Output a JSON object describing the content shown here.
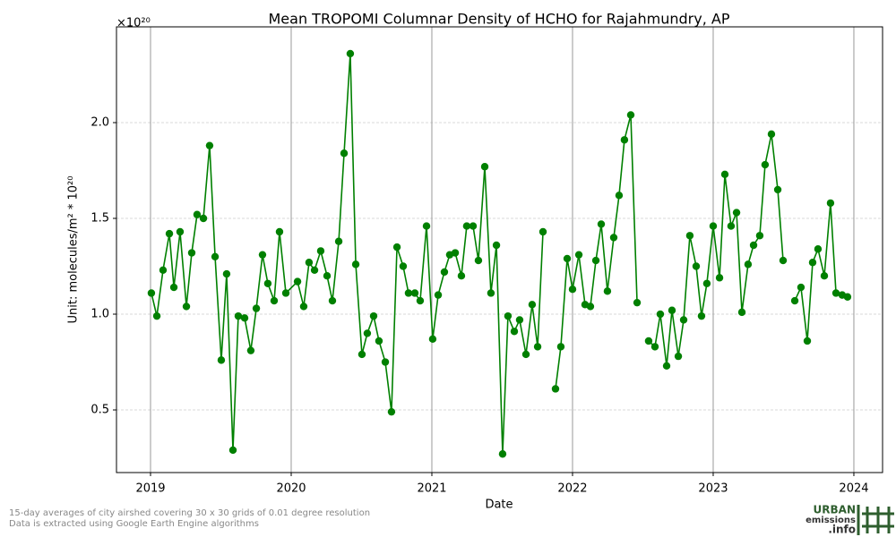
{
  "chart_data": {
    "type": "line",
    "title": "Mean TROPOMI Columnar Density of HCHO for Rajahmundry, AP",
    "x_label": "Date",
    "y_label": "Unit: molecules/m² * 10²⁰",
    "y_offset_label": "×10²⁰",
    "notes": [
      "15-day averages of city airshed covering 30 x 30 grids of 0.01 degree resolution",
      "Data is extracted using Google Earth Engine algorithms"
    ],
    "logo": [
      "URBAN",
      "emissions",
      ".info"
    ],
    "x": [
      2019.006,
      2019.045,
      2019.089,
      2019.134,
      2019.166,
      2019.21,
      2019.255,
      2019.293,
      2019.331,
      2019.376,
      2019.42,
      2019.459,
      2019.503,
      2019.541,
      2019.586,
      2019.624,
      2019.669,
      2019.713,
      2019.752,
      2019.796,
      2019.834,
      2019.879,
      2019.917,
      2019.962,
      2020.045,
      2020.089,
      2020.127,
      2020.166,
      2020.21,
      2020.255,
      2020.293,
      2020.338,
      2020.376,
      2020.42,
      2020.459,
      2020.503,
      2020.541,
      2020.586,
      2020.624,
      2020.669,
      2020.713,
      2020.752,
      2020.796,
      2020.834,
      2020.879,
      2020.917,
      2020.962,
      2021.006,
      2021.045,
      2021.089,
      2021.127,
      2021.166,
      2021.21,
      2021.248,
      2021.293,
      2021.331,
      2021.376,
      2021.42,
      2021.459,
      2021.503,
      2021.541,
      2021.586,
      2021.624,
      2021.669,
      2021.713,
      2021.752,
      2021.79,
      2021.834,
      2021.879,
      2021.917,
      2021.962,
      2022.0,
      2022.045,
      2022.089,
      2022.127,
      2022.166,
      2022.204,
      2022.248,
      2022.293,
      2022.331,
      2022.369,
      2022.414,
      2022.459,
      2022.497,
      2022.541,
      2022.586,
      2022.624,
      2022.669,
      2022.707,
      2022.752,
      2022.79,
      2022.834,
      2022.879,
      2022.917,
      2022.955,
      2023.0,
      2023.045,
      2023.083,
      2023.127,
      2023.166,
      2023.204,
      2023.248,
      2023.287,
      2023.331,
      2023.369,
      2023.414,
      2023.459,
      2023.497,
      2023.541,
      2023.58,
      2023.624,
      2023.669,
      2023.707,
      2023.745,
      2023.79,
      2023.834,
      2023.873,
      2023.917,
      2023.955
    ],
    "series": [
      {
        "name": "HCHO",
        "color": "#008000",
        "values": [
          1.11,
          0.99,
          1.23,
          1.42,
          1.14,
          1.43,
          1.04,
          1.32,
          1.52,
          1.5,
          1.88,
          1.3,
          0.76,
          1.21,
          0.29,
          0.99,
          0.98,
          0.81,
          1.03,
          1.31,
          1.16,
          1.07,
          1.43,
          1.11,
          1.17,
          1.04,
          1.27,
          1.23,
          1.33,
          1.2,
          1.07,
          1.38,
          1.84,
          2.36,
          1.26,
          0.79,
          0.9,
          0.99,
          0.86,
          0.75,
          0.49,
          1.35,
          1.25,
          1.11,
          1.11,
          1.07,
          1.46,
          0.87,
          1.1,
          1.22,
          1.31,
          1.32,
          1.2,
          1.46,
          1.46,
          1.28,
          1.77,
          1.11,
          1.36,
          0.27,
          0.99,
          0.91,
          0.97,
          0.79,
          1.05,
          0.83,
          1.43,
          null,
          0.61,
          0.83,
          1.29,
          1.13,
          1.31,
          1.05,
          1.04,
          1.28,
          1.47,
          1.12,
          1.4,
          1.62,
          1.91,
          2.04,
          1.06,
          null,
          0.86,
          0.83,
          1.0,
          0.73,
          1.02,
          0.78,
          0.97,
          1.41,
          1.25,
          0.99,
          1.16,
          1.46,
          1.19,
          1.73,
          1.46,
          1.53,
          1.01,
          1.26,
          1.36,
          1.41,
          1.78,
          1.94,
          1.65,
          1.28,
          null,
          1.07,
          1.14,
          0.86,
          1.27,
          1.34,
          1.2,
          1.58,
          1.11,
          1.1,
          1.09
        ]
      }
    ],
    "xlim": [
      2018.758,
      2024.204
    ],
    "xticks": [
      2019,
      2020,
      2021,
      2022,
      2023,
      2024
    ],
    "ylim": [
      0.173,
      2.5
    ],
    "yticks": [
      0.5,
      {
        "value": 1,
        "label": "1.0"
      },
      1.5,
      {
        "value": 2,
        "label": "2.0"
      }
    ],
    "grid": true
  }
}
